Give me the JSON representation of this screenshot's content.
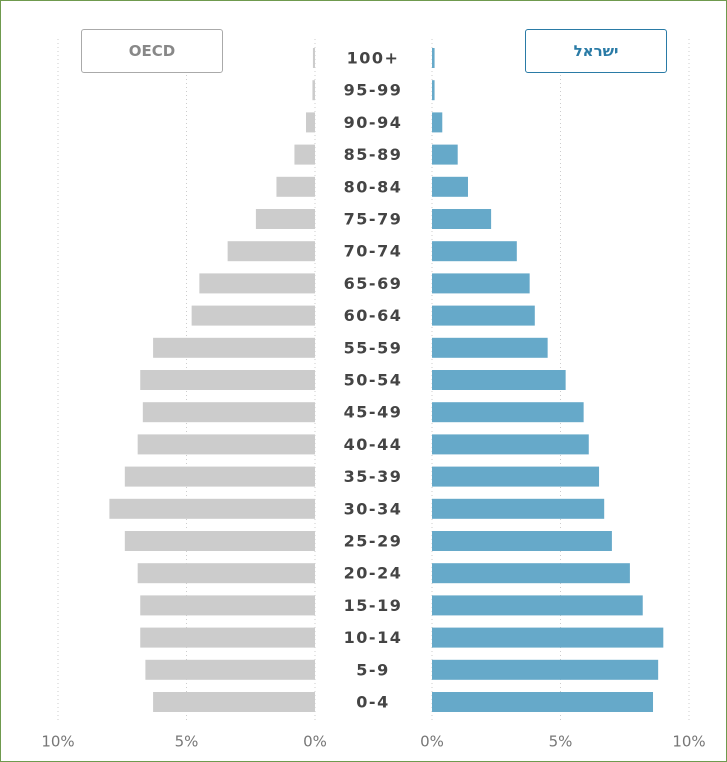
{
  "chart_data": {
    "type": "bar",
    "categories": [
      "100+",
      "95-99",
      "90-94",
      "85-89",
      "80-84",
      "75-79",
      "70-74",
      "65-69",
      "60-64",
      "55-59",
      "50-54",
      "45-49",
      "40-44",
      "35-39",
      "30-34",
      "25-29",
      "20-24",
      "15-19",
      "10-14",
      "5-9",
      "0-4"
    ],
    "series": [
      {
        "name": "OECD",
        "color": "#cccccc",
        "side": "left",
        "values": [
          0.08,
          0.1,
          0.35,
          0.8,
          1.5,
          2.3,
          3.4,
          4.5,
          4.8,
          6.3,
          6.8,
          6.7,
          6.9,
          7.4,
          8.0,
          7.4,
          6.9,
          6.8,
          6.8,
          6.6,
          6.3
        ]
      },
      {
        "name": "ישראל",
        "color": "#66a9c9",
        "side": "right",
        "values": [
          0.1,
          0.1,
          0.4,
          1.0,
          1.4,
          2.3,
          3.3,
          3.8,
          4.0,
          4.5,
          5.2,
          5.9,
          6.1,
          6.5,
          6.7,
          7.0,
          7.7,
          8.2,
          9.0,
          8.8,
          8.6
        ]
      }
    ],
    "xlim": [
      0,
      10
    ],
    "xticks": [
      {
        "value": 0,
        "label": "0%"
      },
      {
        "value": 5,
        "label": "5%"
      },
      {
        "value": 10,
        "label": "10%"
      }
    ],
    "grid": true
  }
}
